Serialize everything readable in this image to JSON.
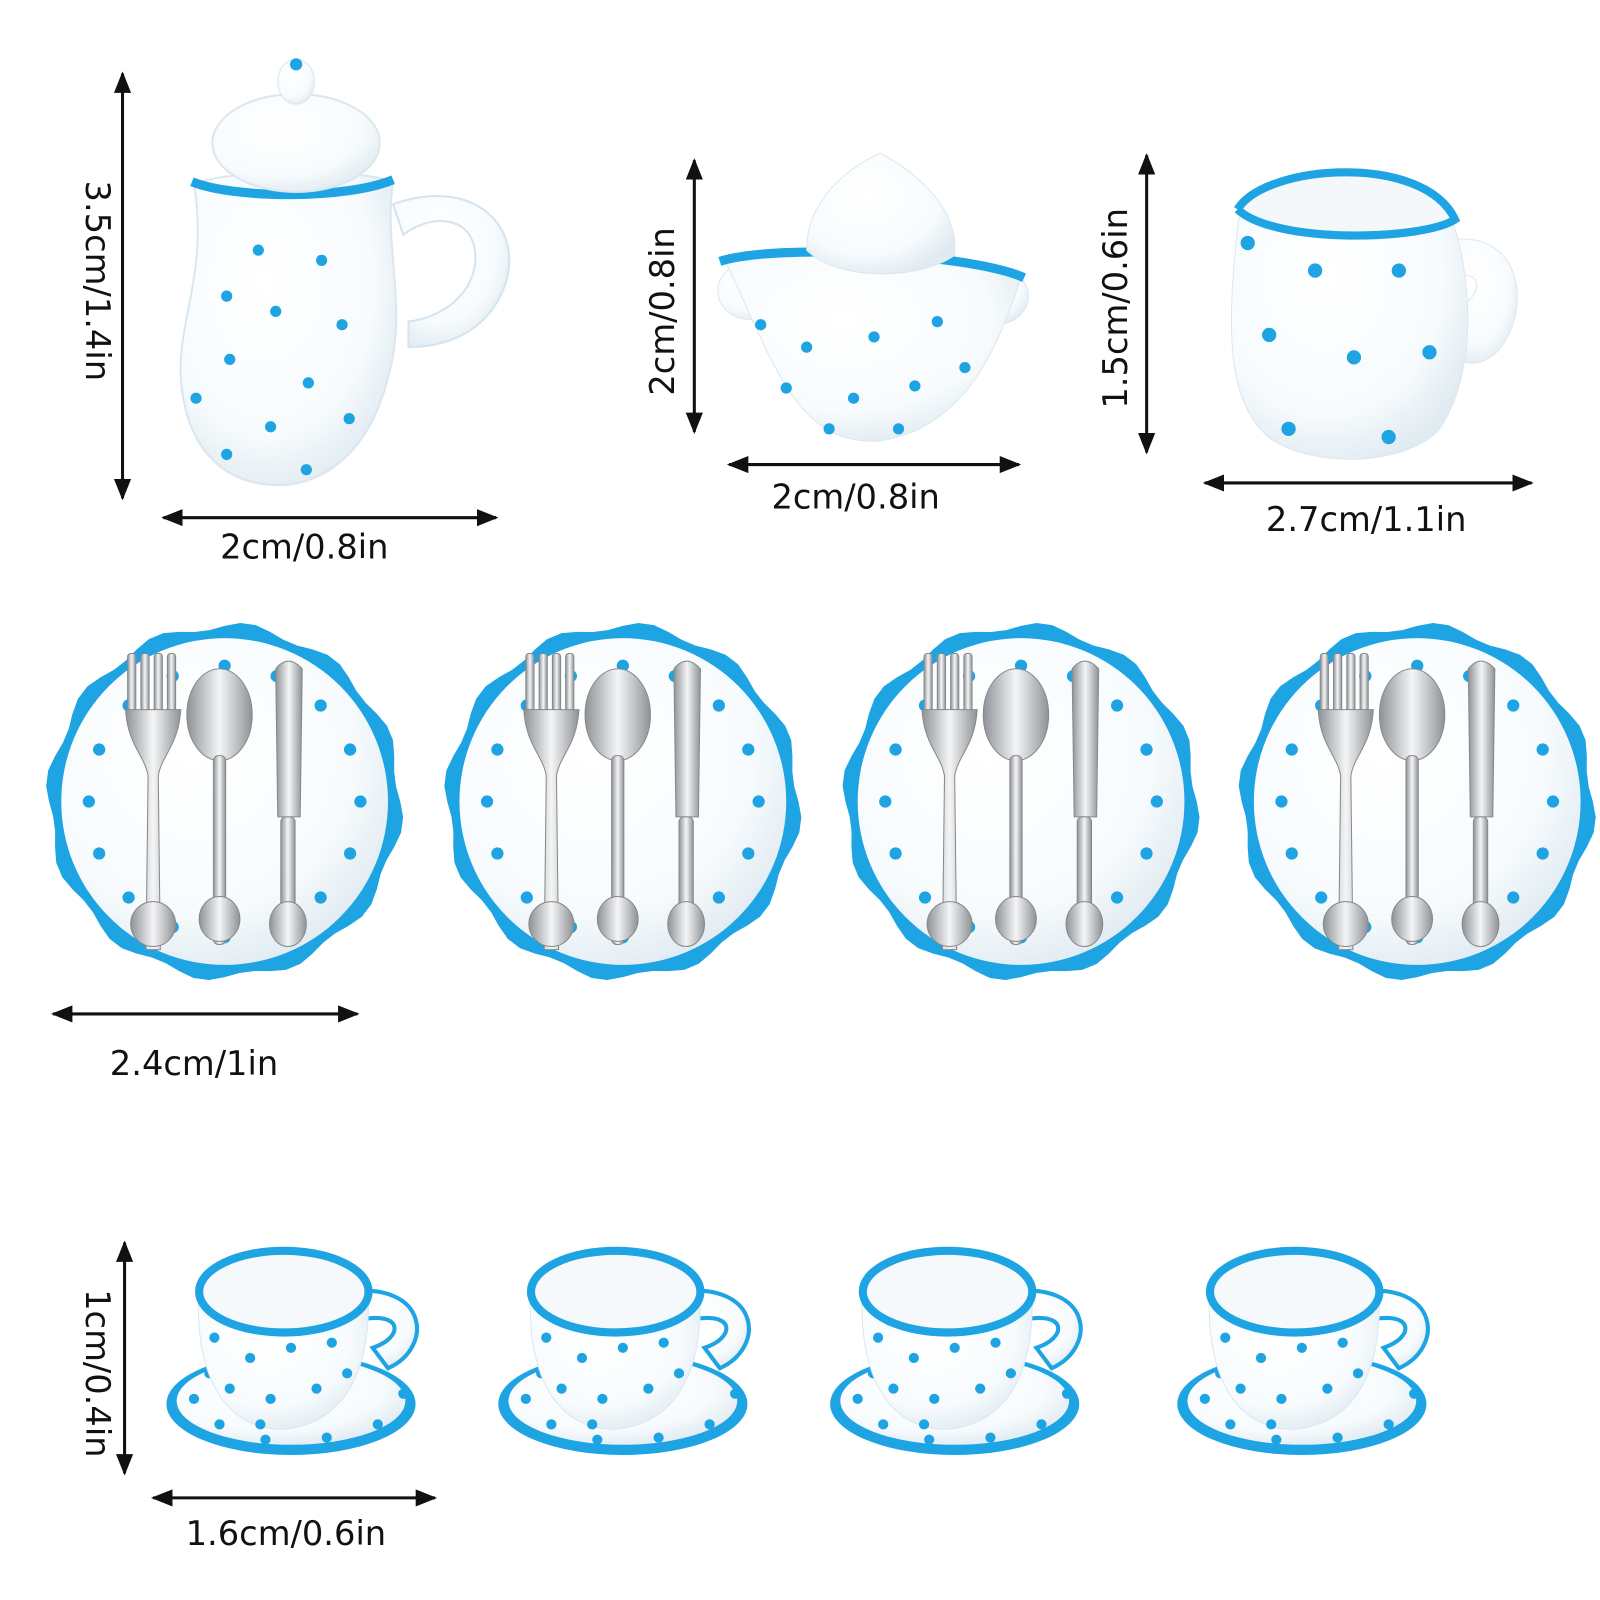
{
  "colors": {
    "accent_blue": "#1ea4e3",
    "porcelain": "#ffffff",
    "shadow": "#e4eef4",
    "silver": "#c9ccd0",
    "text": "#111111"
  },
  "labels": {
    "teapot_height": "3.5cm/1.4in",
    "teapot_width": "2cm/0.8in",
    "sugar_bowl_height": "2cm/0.8in",
    "sugar_bowl_width": "2cm/0.8in",
    "creamer_height": "1.5cm/0.6in",
    "creamer_width": "2.7cm/1.1in",
    "plate_diameter": "2.4cm/1in",
    "cup_height": "1cm/0.4in",
    "cup_width": "1.6cm/0.6in"
  },
  "counts": {
    "plates": 4,
    "cups": 4
  }
}
